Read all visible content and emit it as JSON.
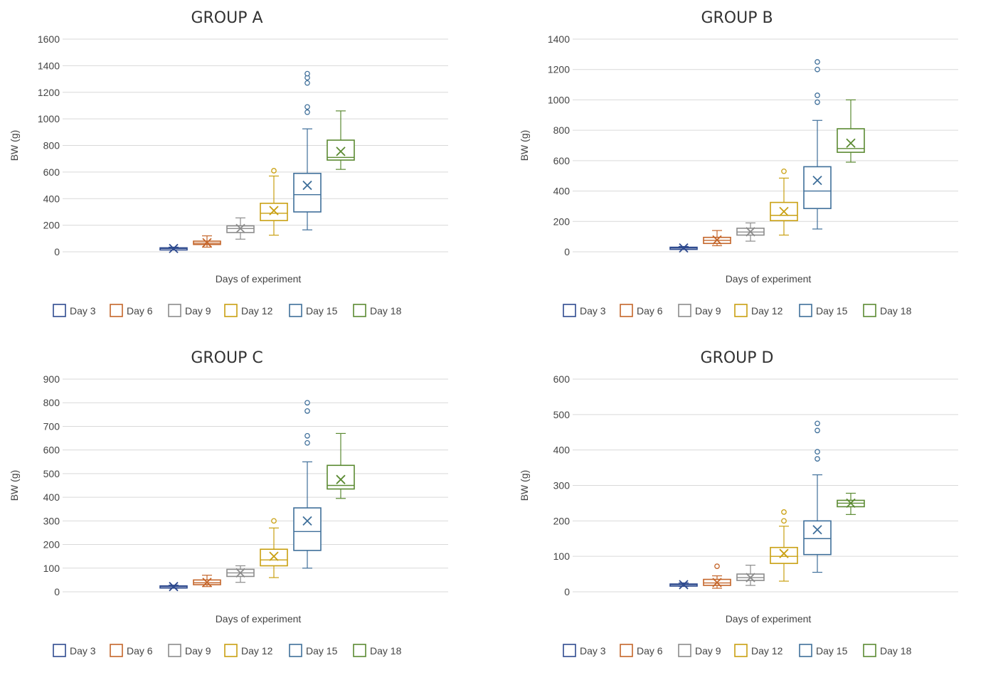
{
  "chart_data": [
    {
      "type": "box",
      "title": "GROUP A",
      "xlabel": "Days of experiment",
      "ylabel": "BW (g)",
      "ylim": [
        0,
        1600
      ],
      "yticks": [
        "0",
        "200",
        "400",
        "600",
        "800",
        "1000",
        "1200",
        "1400",
        "1600"
      ],
      "series": [
        {
          "name": "Day 3",
          "min": 15,
          "q1": 20,
          "median": 25,
          "q3": 30,
          "max": 35,
          "mean": 25,
          "outliers": []
        },
        {
          "name": "Day 6",
          "min": 35,
          "q1": 55,
          "median": 65,
          "q3": 80,
          "max": 120,
          "mean": 68,
          "outliers": []
        },
        {
          "name": "Day 9",
          "min": 95,
          "q1": 145,
          "median": 175,
          "q3": 195,
          "max": 255,
          "mean": 175,
          "outliers": []
        },
        {
          "name": "Day 12",
          "min": 125,
          "q1": 235,
          "median": 290,
          "q3": 365,
          "max": 570,
          "mean": 310,
          "outliers": [
            610
          ]
        },
        {
          "name": "Day 15",
          "min": 165,
          "q1": 300,
          "median": 430,
          "q3": 590,
          "max": 925,
          "mean": 500,
          "outliers": [
            1050,
            1090,
            1270,
            1310,
            1340
          ]
        },
        {
          "name": "Day 18",
          "min": 620,
          "q1": 690,
          "median": 710,
          "q3": 840,
          "max": 1060,
          "mean": 755,
          "outliers": []
        }
      ]
    },
    {
      "type": "box",
      "title": "GROUP B",
      "xlabel": "Days of experiment",
      "ylabel": "BW (g)",
      "ylim": [
        0,
        1400
      ],
      "yticks": [
        "0",
        "200",
        "400",
        "600",
        "800",
        "1000",
        "1200",
        "1400"
      ],
      "series": [
        {
          "name": "Day 3",
          "min": 15,
          "q1": 20,
          "median": 25,
          "q3": 30,
          "max": 35,
          "mean": 25,
          "outliers": []
        },
        {
          "name": "Day 6",
          "min": 40,
          "q1": 55,
          "median": 75,
          "q3": 95,
          "max": 140,
          "mean": 78,
          "outliers": []
        },
        {
          "name": "Day 9",
          "min": 70,
          "q1": 110,
          "median": 130,
          "q3": 155,
          "max": 190,
          "mean": 132,
          "outliers": []
        },
        {
          "name": "Day 12",
          "min": 110,
          "q1": 205,
          "median": 240,
          "q3": 325,
          "max": 485,
          "mean": 265,
          "outliers": [
            530
          ]
        },
        {
          "name": "Day 15",
          "min": 150,
          "q1": 285,
          "median": 400,
          "q3": 560,
          "max": 865,
          "mean": 470,
          "outliers": [
            985,
            1030,
            1200,
            1250
          ]
        },
        {
          "name": "Day 18",
          "min": 590,
          "q1": 655,
          "median": 680,
          "q3": 810,
          "max": 1000,
          "mean": 715,
          "outliers": []
        }
      ]
    },
    {
      "type": "box",
      "title": "GROUP C",
      "xlabel": "Days of experiment",
      "ylabel": "BW (g)",
      "ylim": [
        0,
        900
      ],
      "yticks": [
        "0",
        "100",
        "200",
        "300",
        "400",
        "500",
        "600",
        "700",
        "800",
        "900"
      ],
      "series": [
        {
          "name": "Day 3",
          "min": 15,
          "q1": 18,
          "median": 22,
          "q3": 25,
          "max": 28,
          "mean": 22,
          "outliers": []
        },
        {
          "name": "Day 6",
          "min": 22,
          "q1": 30,
          "median": 38,
          "q3": 50,
          "max": 70,
          "mean": 40,
          "outliers": []
        },
        {
          "name": "Day 9",
          "min": 40,
          "q1": 65,
          "median": 80,
          "q3": 95,
          "max": 110,
          "mean": 80,
          "outliers": []
        },
        {
          "name": "Day 12",
          "min": 60,
          "q1": 110,
          "median": 135,
          "q3": 180,
          "max": 270,
          "mean": 150,
          "outliers": [
            300
          ]
        },
        {
          "name": "Day 15",
          "min": 100,
          "q1": 175,
          "median": 255,
          "q3": 355,
          "max": 550,
          "mean": 300,
          "outliers": [
            630,
            660,
            765,
            800
          ]
        },
        {
          "name": "Day 18",
          "min": 395,
          "q1": 435,
          "median": 450,
          "q3": 535,
          "max": 670,
          "mean": 475,
          "outliers": []
        }
      ]
    },
    {
      "type": "box",
      "title": "GROUP D",
      "xlabel": "Days of experiment",
      "ylabel": "BW (g)",
      "ylim": [
        0,
        600
      ],
      "yticks": [
        "0",
        "100",
        "200",
        "300",
        "400",
        "500",
        "600"
      ],
      "series": [
        {
          "name": "Day 3",
          "min": 15,
          "q1": 18,
          "median": 20,
          "q3": 22,
          "max": 25,
          "mean": 20,
          "outliers": []
        },
        {
          "name": "Day 6",
          "min": 10,
          "q1": 18,
          "median": 25,
          "q3": 35,
          "max": 45,
          "mean": 26,
          "outliers": [
            72
          ]
        },
        {
          "name": "Day 9",
          "min": 18,
          "q1": 32,
          "median": 40,
          "q3": 50,
          "max": 75,
          "mean": 40,
          "outliers": []
        },
        {
          "name": "Day 12",
          "min": 30,
          "q1": 80,
          "median": 100,
          "q3": 125,
          "max": 185,
          "mean": 108,
          "outliers": [
            200,
            225
          ]
        },
        {
          "name": "Day 15",
          "min": 55,
          "q1": 105,
          "median": 150,
          "q3": 200,
          "max": 330,
          "mean": 175,
          "outliers": [
            375,
            395,
            455,
            475
          ]
        },
        {
          "name": "Day 18",
          "min": 218,
          "q1": 240,
          "median": 250,
          "q3": 258,
          "max": 278,
          "mean": 250,
          "outliers": []
        }
      ]
    }
  ],
  "colors": {
    "Day 3": "#2f4b8f",
    "Day 6": "#c4652a",
    "Day 9": "#8c8c8c",
    "Day 12": "#c9a012",
    "Day 15": "#3f6f9a",
    "Day 18": "#5b8a32",
    "grid": "#d9d9d9",
    "text": "#444444"
  }
}
